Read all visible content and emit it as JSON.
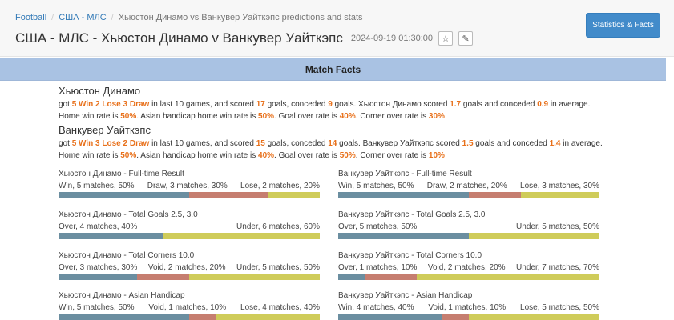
{
  "breadcrumb": {
    "items": [
      "Football",
      "США - МЛС",
      "Хьюстон Динамо vs Ванкувер Уайткэпс predictions and stats"
    ]
  },
  "header": {
    "title": "США - МЛС -  Хьюстон Динамо v Ванкувер Уайткэпс",
    "datetime": "2024-09-19 01:30:00",
    "star_icon": "star-outline",
    "edit_icon": "edit"
  },
  "toolbar": {
    "stats_button": "Statistics & Facts"
  },
  "section": {
    "title": "Match Facts"
  },
  "colors": {
    "blue": "#6b8ea0",
    "red": "#c67e70",
    "yellow": "#cfcc5a",
    "highlight": "#e8701a",
    "button": "#428bca",
    "band": "#a9c2e3"
  },
  "teams": [
    {
      "name": "Хьюстон Динамо",
      "parts": [
        "got ",
        "5 Win 2 Lose 3 Draw",
        " in last 10 games, and scored ",
        "17",
        " goals, conceded ",
        "9",
        " goals. Хьюстон Динамо scored ",
        "1.7",
        " goals and conceded ",
        "0.9",
        " in average. Home win rate is ",
        "50%",
        ". Asian handicap home win rate is ",
        "50%",
        ". Goal over rate is ",
        "40%",
        ". Corner over rate is ",
        "30%"
      ]
    },
    {
      "name": "Ванкувер Уайткэпс",
      "parts": [
        "got ",
        "5 Win 3 Lose 2 Draw",
        " in last 10 games, and scored ",
        "15",
        " goals, conceded ",
        "14",
        " goals. Ванкувер Уайткэпс scored ",
        "1.5",
        " goals and conceded ",
        "1.4",
        " in average. Home win rate is ",
        "50%",
        ". Asian handicap home win rate is ",
        "40%",
        ". Goal over rate is ",
        "50%",
        ". Corner over rate is ",
        "10%"
      ]
    }
  ],
  "stats": [
    {
      "label": "Хьюстон Динамо - Full-time Result",
      "left": "Win, 5 matches, 50%",
      "mid": "Draw, 3 matches, 30%",
      "right": "Lose, 2 matches, 20%",
      "segments": [
        50,
        30,
        20
      ],
      "colors": [
        "blue",
        "red",
        "yellow"
      ]
    },
    {
      "label": "Ванкувер Уайткэпс - Full-time Result",
      "left": "Win, 5 matches, 50%",
      "mid": "Draw, 2 matches, 20%",
      "right": "Lose, 3 matches, 30%",
      "segments": [
        50,
        20,
        30
      ],
      "colors": [
        "blue",
        "red",
        "yellow"
      ]
    },
    {
      "label": "Хьюстон Динамо - Total Goals 2.5, 3.0",
      "left": "Over, 4 matches, 40%",
      "mid": "",
      "right": "Under, 6 matches, 60%",
      "segments": [
        40,
        60
      ],
      "colors": [
        "blue",
        "yellow"
      ]
    },
    {
      "label": "Ванкувер Уайткэпс - Total Goals 2.5, 3.0",
      "left": "Over, 5 matches, 50%",
      "mid": "",
      "right": "Under, 5 matches, 50%",
      "segments": [
        50,
        50
      ],
      "colors": [
        "blue",
        "yellow"
      ]
    },
    {
      "label": "Хьюстон Динамо - Total Corners 10.0",
      "left": "Over, 3 matches, 30%",
      "mid": "Void, 2 matches, 20%",
      "right": "Under, 5 matches, 50%",
      "segments": [
        30,
        20,
        50
      ],
      "colors": [
        "blue",
        "red",
        "yellow"
      ]
    },
    {
      "label": "Ванкувер Уайткэпс - Total Corners 10.0",
      "left": "Over, 1 matches, 10%",
      "mid": "Void, 2 matches, 20%",
      "right": "Under, 7 matches, 70%",
      "segments": [
        10,
        20,
        70
      ],
      "colors": [
        "blue",
        "red",
        "yellow"
      ]
    },
    {
      "label": "Хьюстон Динамо - Asian Handicap",
      "left": "Win, 5 matches, 50%",
      "mid": "Void, 1 matches, 10%",
      "right": "Lose, 4 matches, 40%",
      "segments": [
        50,
        10,
        40
      ],
      "colors": [
        "blue",
        "red",
        "yellow"
      ]
    },
    {
      "label": "Ванкувер Уайткэпс - Asian Handicap",
      "left": "Win, 4 matches, 40%",
      "mid": "Void, 1 matches, 10%",
      "right": "Lose, 5 matches, 50%",
      "segments": [
        40,
        10,
        50
      ],
      "colors": [
        "blue",
        "red",
        "yellow"
      ]
    }
  ]
}
